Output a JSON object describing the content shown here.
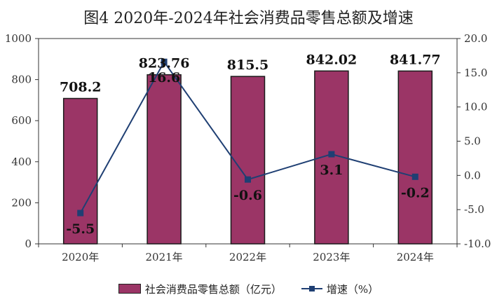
{
  "chart_data": {
    "type": "bar+line",
    "title": "图4  2020年-2024年社会消费品零售总额及增速",
    "categories": [
      "2020年",
      "2021年",
      "2022年",
      "2023年",
      "2024年"
    ],
    "series": [
      {
        "name": "社会消费品零售总额（亿元）",
        "type": "bar",
        "axis": "left",
        "color": "#9b3566",
        "values": [
          708.2,
          823.76,
          815.5,
          842.02,
          841.77
        ],
        "labels": [
          "708.2",
          "823.76",
          "815.5",
          "842.02",
          "841.77"
        ]
      },
      {
        "name": "增速（%）",
        "type": "line",
        "axis": "right",
        "color": "#1f3f73",
        "values": [
          -5.5,
          16.6,
          -0.6,
          3.1,
          -0.2
        ],
        "labels": [
          "-5.5",
          "16.6",
          "-0.6",
          "3.1",
          "-0.2"
        ]
      }
    ],
    "y_left": {
      "min": 0,
      "max": 1000,
      "ticks": [
        "0",
        "200",
        "400",
        "600",
        "800",
        "1000"
      ]
    },
    "y_right": {
      "min": -10,
      "max": 20,
      "ticks": [
        "-10.0",
        "-5.0",
        "0.0",
        "5.0",
        "10.0",
        "15.0",
        "20.0"
      ]
    },
    "grid": false,
    "legend_position": "bottom"
  }
}
